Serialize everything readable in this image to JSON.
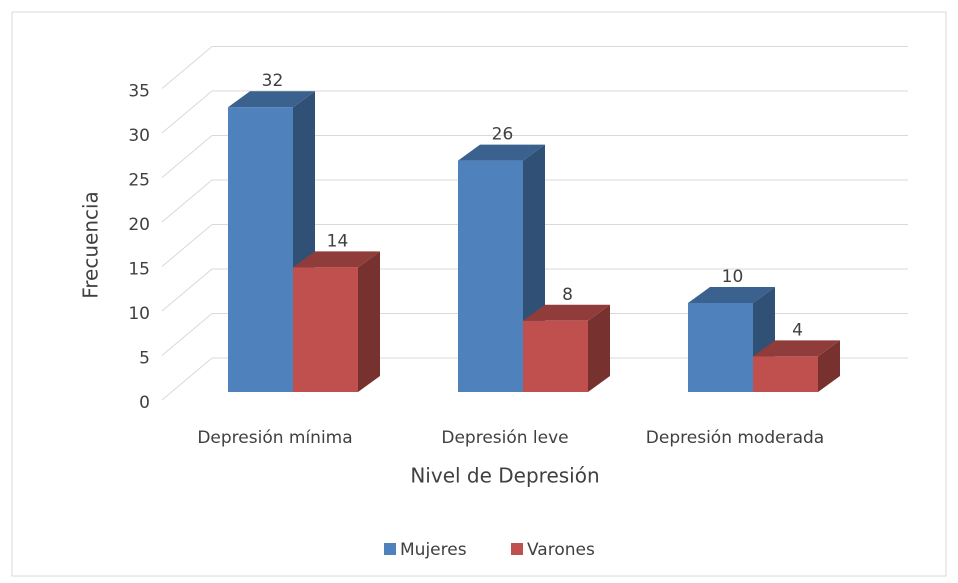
{
  "chart_data": {
    "type": "bar3d",
    "x_label": "Nivel de Depresión",
    "y_label": "Frecuencia",
    "categories": [
      "Depresión mínima",
      "Depresión leve",
      "Depresión moderada"
    ],
    "series": [
      {
        "name": "Mujeres",
        "color": "#4f81bd",
        "values": [
          32,
          26,
          10
        ]
      },
      {
        "name": "Varones",
        "color": "#c0504d",
        "values": [
          14,
          8,
          4
        ]
      }
    ],
    "ylim": [
      0,
      35
    ],
    "yticks": [
      0,
      5,
      10,
      15,
      20,
      25,
      30,
      35
    ],
    "grid": true,
    "legend": "bottom"
  }
}
